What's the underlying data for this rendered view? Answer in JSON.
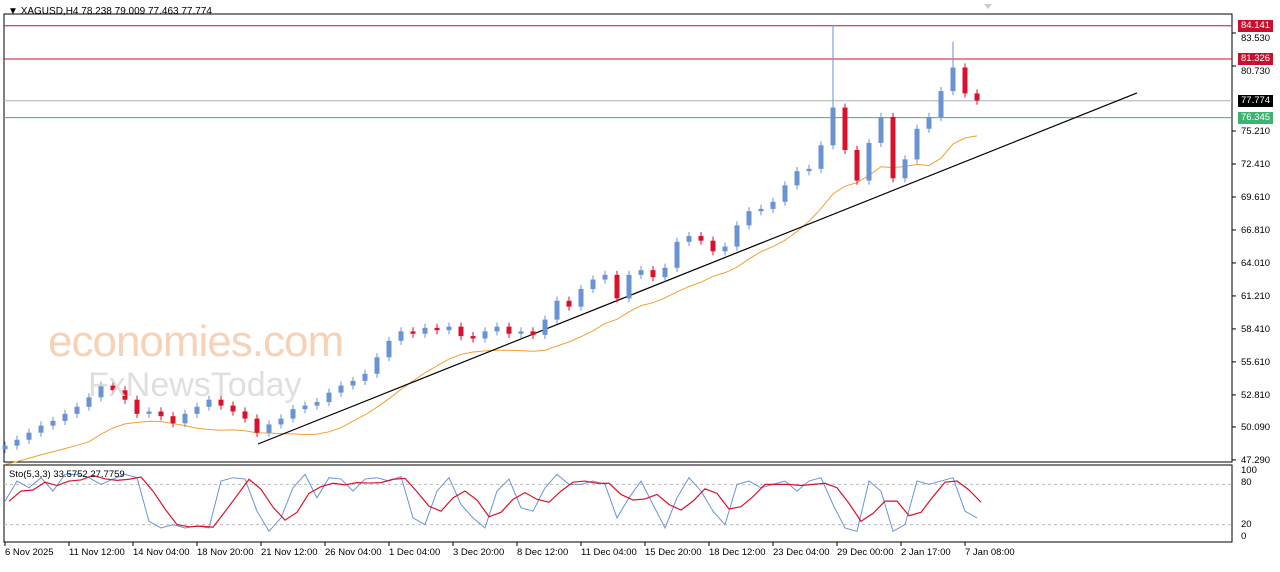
{
  "header": {
    "symbol": "XAGUSD,H4",
    "ohlc": "78.238 79.009 77.463 77.774"
  },
  "indicator": {
    "label": "Sto(5,3,3) 33.5752 27.7759",
    "levels": [
      "100",
      "80",
      "20",
      "0"
    ]
  },
  "watermark": {
    "brand1": "economies.com",
    "brand2": "FxNewsToday"
  },
  "colors": {
    "bull": "#6a93d4",
    "bear": "#d9122b",
    "ma": "#f0a030",
    "resistance": "#c8102e",
    "current": "#000000",
    "support": "#3cb371",
    "stoK": "#6a93d4",
    "stoD": "#d9122b"
  },
  "price_ticks": [
    "83.530",
    "80.730",
    "75.210",
    "72.410",
    "69.610",
    "66.810",
    "64.010",
    "61.210",
    "58.410",
    "55.610",
    "52.810",
    "50.090",
    "47.290"
  ],
  "price_tags": [
    {
      "value": "84.141",
      "kind": "resistance"
    },
    {
      "value": "81.326",
      "kind": "resistance"
    },
    {
      "value": "77.774",
      "kind": "current"
    },
    {
      "value": "76.345",
      "kind": "support"
    }
  ],
  "date_ticks": [
    "6 Nov 2025",
    "11 Nov 12:00",
    "14 Nov 04:00",
    "18 Nov 20:00",
    "21 Nov 12:00",
    "26 Nov 04:00",
    "1 Dec 04:00",
    "3 Dec 20:00",
    "8 Dec 12:00",
    "11 Dec 04:00",
    "15 Dec 20:00",
    "18 Dec 12:00",
    "23 Dec 04:00",
    "29 Dec 00:00",
    "2 Jan 17:00",
    "7 Jan 08:00"
  ],
  "chart_data": {
    "type": "candlestick",
    "ylim": [
      47.29,
      84.6
    ],
    "closes": [
      48.5,
      49.0,
      49.6,
      50.2,
      50.6,
      51.2,
      51.8,
      52.6,
      53.6,
      53.2,
      52.4,
      51.2,
      51.4,
      51.0,
      50.4,
      51.2,
      51.8,
      52.4,
      51.9,
      51.4,
      50.8,
      49.6,
      50.3,
      50.8,
      51.6,
      51.9,
      52.2,
      53.0,
      53.6,
      54.0,
      54.6,
      56.0,
      57.4,
      58.2,
      58.0,
      58.5,
      58.3,
      58.6,
      57.8,
      57.6,
      58.2,
      58.6,
      58.0,
      58.2,
      57.9,
      59.2,
      60.8,
      60.3,
      61.8,
      62.6,
      63.0,
      61.0,
      63.0,
      63.4,
      62.8,
      63.6,
      65.8,
      66.3,
      65.9,
      65.0,
      65.4,
      67.2,
      68.4,
      68.6,
      69.2,
      70.6,
      71.8,
      72.0,
      74.0,
      77.2,
      73.6,
      71.0,
      74.2,
      76.4,
      71.2,
      72.8,
      75.4,
      76.4,
      78.6,
      80.6,
      78.4,
      77.8
    ],
    "spike_highs": [
      {
        "index": 69,
        "high": 84.141
      },
      {
        "index": 79,
        "high": 82.8
      }
    ],
    "horizontal_levels": [
      84.141,
      81.326,
      77.774,
      76.345
    ],
    "trendline": {
      "from_price": 48.64,
      "to_price": 78.44
    },
    "stochastic_k": [
      55,
      85,
      75,
      90,
      70,
      95,
      95,
      90,
      80,
      88,
      95,
      90,
      25,
      15,
      20,
      15,
      18,
      15,
      85,
      90,
      88,
      40,
      10,
      30,
      75,
      95,
      60,
      90,
      88,
      70,
      88,
      90,
      85,
      92,
      30,
      20,
      70,
      90,
      50,
      30,
      15,
      70,
      88,
      45,
      40,
      75,
      95,
      80,
      80,
      85,
      80,
      30,
      60,
      85,
      50,
      15,
      60,
      90,
      70,
      40,
      20,
      80,
      85,
      75,
      80,
      85,
      70,
      85,
      90,
      50,
      15,
      10,
      85,
      70,
      10,
      20,
      85,
      80,
      85,
      90,
      40,
      30
    ],
    "stochastic_levels": [
      80,
      20
    ]
  }
}
